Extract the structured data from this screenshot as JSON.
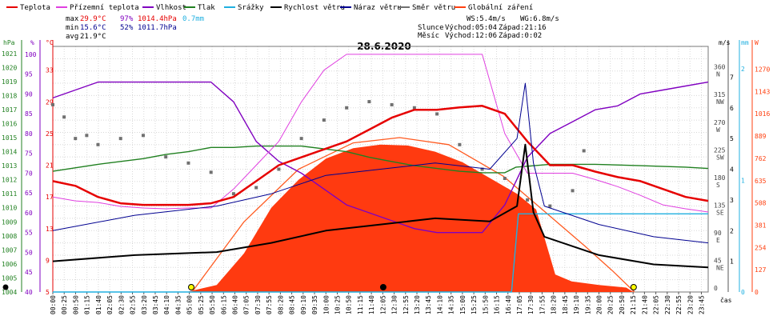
{
  "chart_data": {
    "type": "line",
    "title": "28.6.2020",
    "legend": [
      {
        "label": "Teplota",
        "color": "#e60000"
      },
      {
        "label": "Přízemní teplota",
        "color": "#e040e0"
      },
      {
        "label": "Vlhkost",
        "color": "#8000c0"
      },
      {
        "label": "Tlak",
        "color": "#208020"
      },
      {
        "label": "Srážky",
        "color": "#20b0e0"
      },
      {
        "label": "Rychlost větru",
        "color": "#000000"
      },
      {
        "label": "Náraz větru",
        "color": "#000090"
      },
      {
        "label": "Směr větru",
        "color": "#707070"
      },
      {
        "label": "Globální záření",
        "color": "#ff4010"
      }
    ],
    "stats": {
      "max": {
        "label": "max",
        "temp": "29.9°C",
        "hum": "97%",
        "press": "1014.4hPa",
        "rain": "0.7mm"
      },
      "min": {
        "label": "min",
        "temp": "15.6°C",
        "hum": "52%",
        "press": "1011.7hPa"
      },
      "avg": {
        "label": "avg",
        "temp": "21.9°C"
      }
    },
    "wind_info": {
      "ws": "WS:5.4m/s",
      "wg": "WG:6.8m/s"
    },
    "sun": {
      "label": "Slunce",
      "rise": "Východ:05:04",
      "set": "Západ:21:16"
    },
    "moon": {
      "label": "Měsíc",
      "rise": "Východ:12:06",
      "set": "Západ:0:02"
    },
    "axes": {
      "pressure": {
        "unit": "hPa",
        "ticks": [
          1004,
          1005,
          1006,
          1007,
          1008,
          1009,
          1010,
          1011,
          1012,
          1013,
          1014,
          1015,
          1016,
          1017,
          1018,
          1019,
          1020,
          1021
        ]
      },
      "humidity": {
        "unit": "%",
        "ticks": [
          40,
          45,
          50,
          55,
          60,
          65,
          70,
          75,
          80,
          85,
          90,
          95,
          100
        ]
      },
      "temperature": {
        "unit": "°C",
        "ticks": [
          5,
          9,
          13,
          17,
          21,
          25,
          29,
          33
        ]
      },
      "wind_dir": {
        "ticks": [
          "0",
          "45 NE",
          "90 E",
          "135 SE",
          "180 S",
          "225 SW",
          "270 W",
          "315 NW",
          "360 N"
        ]
      },
      "wind_speed": {
        "unit": "m/s",
        "ticks": [
          1,
          2,
          3,
          4,
          5,
          6,
          7
        ]
      },
      "rain": {
        "unit": "mm",
        "ticks": [
          0,
          1,
          2
        ]
      },
      "radiation": {
        "unit": "W",
        "ticks": [
          0,
          127,
          254,
          381,
          508,
          635,
          762,
          889,
          1016,
          1143,
          1270
        ]
      },
      "time_label": "čas",
      "x_ticks": [
        "00:00",
        "00:25",
        "00:50",
        "01:15",
        "01:40",
        "02:05",
        "02:30",
        "02:55",
        "03:20",
        "03:45",
        "04:10",
        "04:35",
        "05:00",
        "05:25",
        "05:50",
        "06:15",
        "06:40",
        "07:05",
        "07:30",
        "07:55",
        "08:20",
        "08:45",
        "09:10",
        "09:35",
        "10:00",
        "10:25",
        "10:50",
        "11:15",
        "11:40",
        "12:05",
        "12:30",
        "12:55",
        "13:20",
        "13:45",
        "14:10",
        "14:35",
        "15:00",
        "15:25",
        "15:50",
        "16:15",
        "16:40",
        "17:05",
        "17:30",
        "17:55",
        "18:20",
        "18:45",
        "19:10",
        "19:35",
        "20:00",
        "20:25",
        "20:50",
        "21:15",
        "21:40",
        "22:05",
        "22:30",
        "22:55",
        "23:20",
        "23:45"
      ]
    },
    "series": {
      "temperature": [
        [
          0,
          19
        ],
        [
          1,
          18.4
        ],
        [
          2,
          17
        ],
        [
          3,
          16.2
        ],
        [
          4,
          16
        ],
        [
          5,
          16
        ],
        [
          6,
          16
        ],
        [
          7,
          16.2
        ],
        [
          8,
          17
        ],
        [
          9,
          19
        ],
        [
          10,
          21
        ],
        [
          11,
          22
        ],
        [
          12,
          23
        ],
        [
          13,
          24
        ],
        [
          14,
          25.5
        ],
        [
          15,
          27
        ],
        [
          16,
          28
        ],
        [
          17,
          28
        ],
        [
          18,
          28.3
        ],
        [
          19,
          28.5
        ],
        [
          20,
          27.5
        ],
        [
          21,
          24
        ],
        [
          22,
          21
        ],
        [
          23,
          21
        ],
        [
          24,
          20.2
        ],
        [
          25,
          19.5
        ],
        [
          26,
          19
        ],
        [
          27,
          18
        ],
        [
          28,
          17
        ],
        [
          29,
          16.5
        ]
      ],
      "ground_temp": [
        [
          0,
          17
        ],
        [
          1,
          16.5
        ],
        [
          2,
          16.3
        ],
        [
          3,
          15.8
        ],
        [
          4,
          15.6
        ],
        [
          5,
          15.5
        ],
        [
          6,
          15.6
        ],
        [
          7,
          15.6
        ],
        [
          8,
          18
        ],
        [
          9,
          21
        ],
        [
          10,
          24
        ],
        [
          11,
          29
        ],
        [
          12,
          33
        ],
        [
          13,
          35
        ],
        [
          14,
          35
        ],
        [
          15,
          35
        ],
        [
          16,
          35
        ],
        [
          17,
          35
        ],
        [
          18,
          35
        ],
        [
          19,
          35
        ],
        [
          20,
          25
        ],
        [
          21,
          20
        ],
        [
          22,
          20
        ],
        [
          23,
          20
        ],
        [
          24,
          19.2
        ],
        [
          25,
          18.3
        ],
        [
          26,
          17.2
        ],
        [
          27,
          16
        ],
        [
          28,
          15.5
        ],
        [
          29,
          15.1
        ]
      ],
      "humidity": [
        [
          0,
          89
        ],
        [
          1,
          91
        ],
        [
          2,
          93
        ],
        [
          3,
          93
        ],
        [
          4,
          93
        ],
        [
          5,
          93
        ],
        [
          6,
          93
        ],
        [
          7,
          93
        ],
        [
          8,
          88
        ],
        [
          9,
          78
        ],
        [
          10,
          73
        ],
        [
          11,
          70
        ],
        [
          12,
          66
        ],
        [
          13,
          62
        ],
        [
          14,
          60
        ],
        [
          15,
          58
        ],
        [
          16,
          56
        ],
        [
          17,
          55
        ],
        [
          18,
          55
        ],
        [
          19,
          55
        ],
        [
          20,
          62
        ],
        [
          21,
          74
        ],
        [
          22,
          80
        ],
        [
          23,
          83
        ],
        [
          24,
          86
        ],
        [
          25,
          87
        ],
        [
          26,
          90
        ],
        [
          27,
          91
        ],
        [
          28,
          92
        ],
        [
          29,
          93
        ]
      ],
      "pressure": [
        [
          0,
          1012.6
        ],
        [
          2,
          1013.1
        ],
        [
          4,
          1013.5
        ],
        [
          5,
          1013.8
        ],
        [
          6,
          1014.0
        ],
        [
          7,
          1014.3
        ],
        [
          8,
          1014.3
        ],
        [
          9,
          1014.4
        ],
        [
          10,
          1014.4
        ],
        [
          11,
          1014.4
        ],
        [
          12,
          1014.2
        ],
        [
          13,
          1014.0
        ],
        [
          14,
          1013.6
        ],
        [
          15,
          1013.3
        ],
        [
          16,
          1013.0
        ],
        [
          17,
          1012.8
        ],
        [
          18,
          1012.6
        ],
        [
          19,
          1012.5
        ],
        [
          20,
          1012.5
        ],
        [
          20.5,
          1012.9
        ],
        [
          22,
          1013.1
        ],
        [
          24,
          1013.1
        ],
        [
          26,
          1013.0
        ],
        [
          28,
          1012.9
        ],
        [
          29,
          1012.8
        ]
      ],
      "radiation": [
        [
          4.9,
          0
        ],
        [
          6,
          40
        ],
        [
          7,
          220
        ],
        [
          8,
          480
        ],
        [
          9,
          640
        ],
        [
          10,
          760
        ],
        [
          11,
          820
        ],
        [
          12,
          840
        ],
        [
          13,
          835
        ],
        [
          14,
          800
        ],
        [
          15,
          740
        ],
        [
          16,
          650
        ],
        [
          17,
          560
        ],
        [
          17.7,
          470
        ],
        [
          18.4,
          100
        ],
        [
          19,
          60
        ],
        [
          20,
          40
        ],
        [
          21,
          25
        ],
        [
          21.26,
          0
        ]
      ],
      "radiation_clear": [
        [
          5.1,
          0
        ],
        [
          7,
          400
        ],
        [
          9,
          700
        ],
        [
          11,
          850
        ],
        [
          12.7,
          880
        ],
        [
          14.5,
          840
        ],
        [
          16.5,
          660
        ],
        [
          18,
          460
        ],
        [
          19.5,
          260
        ],
        [
          20.5,
          120
        ],
        [
          21.3,
          0
        ]
      ],
      "rain_cumulative": [
        [
          0,
          0
        ],
        [
          16.8,
          0
        ],
        [
          17.05,
          0.7
        ],
        [
          24,
          0.7
        ]
      ],
      "wind_speed_avg": [
        [
          0,
          1
        ],
        [
          3,
          1.2
        ],
        [
          6,
          1.3
        ],
        [
          8,
          1.6
        ],
        [
          10,
          2
        ],
        [
          12,
          2.2
        ],
        [
          14,
          2.4
        ],
        [
          16,
          2.3
        ],
        [
          17,
          2.8
        ],
        [
          17.3,
          4.8
        ],
        [
          17.6,
          2.6
        ],
        [
          18,
          1.8
        ],
        [
          20,
          1.2
        ],
        [
          22,
          0.9
        ],
        [
          24,
          0.8
        ]
      ],
      "wind_gust": [
        [
          0,
          2
        ],
        [
          3,
          2.5
        ],
        [
          6,
          2.8
        ],
        [
          8,
          3.2
        ],
        [
          10,
          3.8
        ],
        [
          12,
          4
        ],
        [
          14,
          4.2
        ],
        [
          16,
          4
        ],
        [
          17,
          5
        ],
        [
          17.3,
          6.8
        ],
        [
          17.6,
          4.2
        ],
        [
          18,
          2.8
        ],
        [
          20,
          2.2
        ],
        [
          22,
          1.8
        ],
        [
          24,
          1.6
        ]
      ],
      "wind_direction": [
        [
          0,
          305
        ],
        [
          0.5,
          285
        ],
        [
          1,
          250
        ],
        [
          1.5,
          255
        ],
        [
          2,
          240
        ],
        [
          3,
          250
        ],
        [
          4,
          255
        ],
        [
          5,
          220
        ],
        [
          6,
          210
        ],
        [
          7,
          195
        ],
        [
          8,
          160
        ],
        [
          9,
          170
        ],
        [
          10,
          200
        ],
        [
          11,
          250
        ],
        [
          12,
          280
        ],
        [
          13,
          300
        ],
        [
          14,
          310
        ],
        [
          15,
          305
        ],
        [
          16,
          300
        ],
        [
          17,
          290
        ],
        [
          18,
          240
        ],
        [
          19,
          200
        ],
        [
          20,
          185
        ],
        [
          21,
          150
        ],
        [
          22,
          140
        ],
        [
          23,
          165
        ],
        [
          23.5,
          230
        ]
      ]
    },
    "markers": {
      "sunrise": 5.07,
      "sunset": 21.27,
      "moonrise": 12.1
    }
  }
}
